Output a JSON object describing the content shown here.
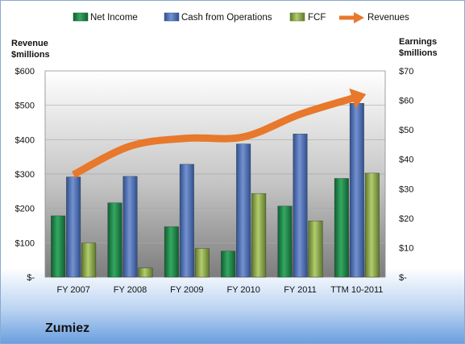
{
  "company": "Zumiez",
  "chart_data": {
    "type": "bar",
    "categories": [
      "FY 2007",
      "FY 2008",
      "FY 2009",
      "FY 2010",
      "FY 2011",
      "TTM 10-2011"
    ],
    "left_axis": {
      "title_line1": "Revenue",
      "title_line2": "$millions",
      "ylim": [
        0,
        600
      ],
      "ticks": [
        {
          "value": 0,
          "label": "$-"
        },
        {
          "value": 100,
          "label": "$100"
        },
        {
          "value": 200,
          "label": "$200"
        },
        {
          "value": 300,
          "label": "$300"
        },
        {
          "value": 400,
          "label": "$400"
        },
        {
          "value": 500,
          "label": "$500"
        },
        {
          "value": 600,
          "label": "$600"
        }
      ]
    },
    "right_axis": {
      "title_line1": "Earnings",
      "title_line2": "$millions",
      "ylim": [
        0,
        70
      ],
      "ticks": [
        {
          "value": 0,
          "label": "$-"
        },
        {
          "value": 10,
          "label": "$10"
        },
        {
          "value": 20,
          "label": "$20"
        },
        {
          "value": 30,
          "label": "$30"
        },
        {
          "value": 40,
          "label": "$40"
        },
        {
          "value": 50,
          "label": "$50"
        },
        {
          "value": 60,
          "label": "$60"
        },
        {
          "value": 70,
          "label": "$70"
        }
      ]
    },
    "series": [
      {
        "name": "Net Income",
        "axis": "right",
        "kind": "bar",
        "color": "#1e8a4c",
        "values": [
          20.8,
          25.2,
          17.1,
          8.8,
          24.1,
          33.5
        ]
      },
      {
        "name": "Cash from Operations",
        "axis": "right",
        "kind": "bar",
        "color": "#4f73b8",
        "values": [
          34.0,
          34.2,
          38.3,
          45.2,
          48.6,
          59.0
        ]
      },
      {
        "name": "FCF",
        "axis": "right",
        "kind": "bar",
        "color": "#8faa4c",
        "values": [
          11.6,
          3.1,
          9.7,
          28.4,
          19.1,
          35.3
        ]
      },
      {
        "name": "Revenues",
        "axis": "left",
        "kind": "line",
        "color": "#e8782c",
        "values": [
          298,
          381,
          404,
          408,
          474,
          524
        ]
      }
    ],
    "grid": true,
    "legend_position": "top"
  }
}
